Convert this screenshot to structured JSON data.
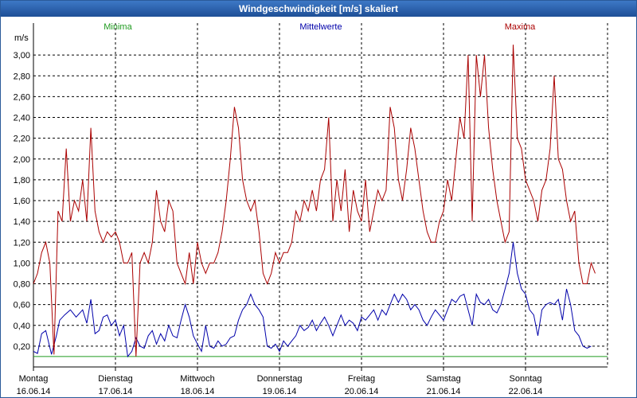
{
  "window": {
    "title": "Windgeschwindigkeit [m/s] skaliert"
  },
  "legend": {
    "min_label": "Minima",
    "mean_label": "Mittelwerte",
    "max_label": "Maxima"
  },
  "colors": {
    "min": "#1f9a1f",
    "mean": "#0000aa",
    "max": "#aa0000",
    "grid": "#000000",
    "plot_bg": "#ffffff"
  },
  "chart_data": {
    "type": "line",
    "title": "Windgeschwindigkeit [m/s] skaliert",
    "ylabel": "m/s",
    "xlabel": "",
    "ylim": [
      0,
      3.2
    ],
    "yticks": [
      0.2,
      0.4,
      0.6,
      0.8,
      1.0,
      1.2,
      1.4,
      1.6,
      1.8,
      2.0,
      2.2,
      2.4,
      2.6,
      2.8,
      3.0
    ],
    "ytick_labels": [
      "0,20",
      "0,40",
      "0,60",
      "0,80",
      "1,00",
      "1,20",
      "1,40",
      "1,60",
      "1,80",
      "2,00",
      "2,20",
      "2,40",
      "2,60",
      "2,80",
      "3,00"
    ],
    "xlim": [
      0,
      7
    ],
    "x_units": "days from 16.06.14 00:00",
    "day_labels": [
      {
        "weekday": "Montag",
        "date": "16.06.14",
        "x": 0
      },
      {
        "weekday": "Dienstag",
        "date": "17.06.14",
        "x": 1
      },
      {
        "weekday": "Mittwoch",
        "date": "18.06.14",
        "x": 2
      },
      {
        "weekday": "Donnerstag",
        "date": "19.06.14",
        "x": 3
      },
      {
        "weekday": "Freitag",
        "date": "20.06.14",
        "x": 4
      },
      {
        "weekday": "Samstag",
        "date": "21.06.14",
        "x": 5
      },
      {
        "weekday": "Sonntag",
        "date": "22.06.14",
        "x": 6
      }
    ],
    "grid": true,
    "series": [
      {
        "name": "Minima",
        "color": "#1f9a1f",
        "points": [
          [
            0,
            0.1
          ],
          [
            7,
            0.1
          ]
        ]
      },
      {
        "name": "Mittelwerte",
        "color": "#0000aa",
        "points": [
          [
            0.0,
            0.15
          ],
          [
            0.05,
            0.13
          ],
          [
            0.1,
            0.32
          ],
          [
            0.15,
            0.35
          ],
          [
            0.22,
            0.12
          ],
          [
            0.28,
            0.3
          ],
          [
            0.32,
            0.45
          ],
          [
            0.38,
            0.5
          ],
          [
            0.45,
            0.55
          ],
          [
            0.52,
            0.48
          ],
          [
            0.6,
            0.55
          ],
          [
            0.65,
            0.42
          ],
          [
            0.7,
            0.65
          ],
          [
            0.75,
            0.32
          ],
          [
            0.8,
            0.35
          ],
          [
            0.85,
            0.48
          ],
          [
            0.9,
            0.5
          ],
          [
            0.95,
            0.4
          ],
          [
            1.0,
            0.45
          ],
          [
            1.05,
            0.3
          ],
          [
            1.1,
            0.4
          ],
          [
            1.15,
            0.1
          ],
          [
            1.2,
            0.15
          ],
          [
            1.25,
            0.28
          ],
          [
            1.3,
            0.2
          ],
          [
            1.35,
            0.18
          ],
          [
            1.4,
            0.3
          ],
          [
            1.45,
            0.35
          ],
          [
            1.5,
            0.22
          ],
          [
            1.55,
            0.32
          ],
          [
            1.6,
            0.25
          ],
          [
            1.65,
            0.4
          ],
          [
            1.7,
            0.3
          ],
          [
            1.75,
            0.28
          ],
          [
            1.8,
            0.45
          ],
          [
            1.85,
            0.6
          ],
          [
            1.9,
            0.48
          ],
          [
            1.95,
            0.3
          ],
          [
            2.0,
            0.22
          ],
          [
            2.05,
            0.15
          ],
          [
            2.1,
            0.4
          ],
          [
            2.15,
            0.2
          ],
          [
            2.2,
            0.18
          ],
          [
            2.25,
            0.25
          ],
          [
            2.3,
            0.2
          ],
          [
            2.35,
            0.22
          ],
          [
            2.4,
            0.28
          ],
          [
            2.45,
            0.3
          ],
          [
            2.5,
            0.45
          ],
          [
            2.55,
            0.55
          ],
          [
            2.6,
            0.6
          ],
          [
            2.65,
            0.7
          ],
          [
            2.7,
            0.6
          ],
          [
            2.75,
            0.55
          ],
          [
            2.8,
            0.48
          ],
          [
            2.85,
            0.2
          ],
          [
            2.9,
            0.18
          ],
          [
            2.95,
            0.22
          ],
          [
            3.0,
            0.15
          ],
          [
            3.05,
            0.25
          ],
          [
            3.1,
            0.2
          ],
          [
            3.15,
            0.25
          ],
          [
            3.2,
            0.3
          ],
          [
            3.25,
            0.4
          ],
          [
            3.3,
            0.35
          ],
          [
            3.35,
            0.38
          ],
          [
            3.4,
            0.45
          ],
          [
            3.45,
            0.35
          ],
          [
            3.5,
            0.42
          ],
          [
            3.55,
            0.48
          ],
          [
            3.6,
            0.4
          ],
          [
            3.65,
            0.3
          ],
          [
            3.7,
            0.4
          ],
          [
            3.75,
            0.5
          ],
          [
            3.8,
            0.4
          ],
          [
            3.85,
            0.45
          ],
          [
            3.9,
            0.42
          ],
          [
            3.95,
            0.35
          ],
          [
            4.0,
            0.48
          ],
          [
            4.05,
            0.45
          ],
          [
            4.1,
            0.5
          ],
          [
            4.15,
            0.55
          ],
          [
            4.2,
            0.45
          ],
          [
            4.25,
            0.55
          ],
          [
            4.3,
            0.5
          ],
          [
            4.35,
            0.6
          ],
          [
            4.4,
            0.7
          ],
          [
            4.45,
            0.62
          ],
          [
            4.5,
            0.7
          ],
          [
            4.55,
            0.65
          ],
          [
            4.6,
            0.55
          ],
          [
            4.65,
            0.6
          ],
          [
            4.7,
            0.55
          ],
          [
            4.75,
            0.45
          ],
          [
            4.8,
            0.4
          ],
          [
            4.85,
            0.48
          ],
          [
            4.9,
            0.55
          ],
          [
            4.95,
            0.5
          ],
          [
            5.0,
            0.45
          ],
          [
            5.05,
            0.55
          ],
          [
            5.1,
            0.65
          ],
          [
            5.15,
            0.62
          ],
          [
            5.2,
            0.68
          ],
          [
            5.25,
            0.7
          ],
          [
            5.3,
            0.55
          ],
          [
            5.35,
            0.4
          ],
          [
            5.4,
            0.7
          ],
          [
            5.45,
            0.62
          ],
          [
            5.5,
            0.6
          ],
          [
            5.55,
            0.65
          ],
          [
            5.6,
            0.55
          ],
          [
            5.65,
            0.52
          ],
          [
            5.7,
            0.6
          ],
          [
            5.75,
            0.75
          ],
          [
            5.8,
            0.9
          ],
          [
            5.85,
            1.2
          ],
          [
            5.9,
            0.9
          ],
          [
            5.95,
            0.75
          ],
          [
            6.0,
            0.7
          ],
          [
            6.05,
            0.55
          ],
          [
            6.1,
            0.5
          ],
          [
            6.15,
            0.3
          ],
          [
            6.2,
            0.55
          ],
          [
            6.25,
            0.6
          ],
          [
            6.3,
            0.62
          ],
          [
            6.35,
            0.6
          ],
          [
            6.4,
            0.65
          ],
          [
            6.45,
            0.45
          ],
          [
            6.5,
            0.75
          ],
          [
            6.55,
            0.6
          ],
          [
            6.6,
            0.35
          ],
          [
            6.65,
            0.3
          ],
          [
            6.7,
            0.2
          ],
          [
            6.75,
            0.18
          ],
          [
            6.8,
            0.2
          ]
        ]
      },
      {
        "name": "Maxima",
        "color": "#aa0000",
        "points": [
          [
            0.0,
            0.8
          ],
          [
            0.05,
            0.9
          ],
          [
            0.1,
            1.1
          ],
          [
            0.15,
            1.2
          ],
          [
            0.2,
            1.0
          ],
          [
            0.25,
            0.12
          ],
          [
            0.3,
            1.5
          ],
          [
            0.35,
            1.4
          ],
          [
            0.4,
            2.1
          ],
          [
            0.45,
            1.4
          ],
          [
            0.5,
            1.6
          ],
          [
            0.55,
            1.5
          ],
          [
            0.6,
            1.8
          ],
          [
            0.65,
            1.4
          ],
          [
            0.7,
            2.3
          ],
          [
            0.75,
            1.5
          ],
          [
            0.8,
            1.3
          ],
          [
            0.85,
            1.2
          ],
          [
            0.9,
            1.3
          ],
          [
            0.95,
            1.25
          ],
          [
            1.0,
            1.3
          ],
          [
            1.05,
            1.2
          ],
          [
            1.1,
            1.0
          ],
          [
            1.15,
            1.0
          ],
          [
            1.2,
            1.1
          ],
          [
            1.25,
            0.1
          ],
          [
            1.3,
            1.0
          ],
          [
            1.35,
            1.1
          ],
          [
            1.4,
            1.0
          ],
          [
            1.45,
            1.2
          ],
          [
            1.5,
            1.7
          ],
          [
            1.55,
            1.4
          ],
          [
            1.6,
            1.3
          ],
          [
            1.65,
            1.6
          ],
          [
            1.7,
            1.5
          ],
          [
            1.75,
            1.0
          ],
          [
            1.8,
            0.9
          ],
          [
            1.85,
            0.8
          ],
          [
            1.9,
            1.1
          ],
          [
            1.95,
            0.8
          ],
          [
            2.0,
            1.2
          ],
          [
            2.05,
            1.0
          ],
          [
            2.1,
            0.9
          ],
          [
            2.15,
            1.0
          ],
          [
            2.2,
            1.0
          ],
          [
            2.25,
            1.1
          ],
          [
            2.3,
            1.3
          ],
          [
            2.35,
            1.6
          ],
          [
            2.4,
            2.0
          ],
          [
            2.45,
            2.5
          ],
          [
            2.5,
            2.3
          ],
          [
            2.55,
            1.8
          ],
          [
            2.6,
            1.6
          ],
          [
            2.65,
            1.5
          ],
          [
            2.7,
            1.6
          ],
          [
            2.75,
            1.3
          ],
          [
            2.8,
            0.9
          ],
          [
            2.85,
            0.8
          ],
          [
            2.9,
            0.9
          ],
          [
            2.95,
            1.1
          ],
          [
            3.0,
            1.0
          ],
          [
            3.05,
            1.1
          ],
          [
            3.1,
            1.1
          ],
          [
            3.15,
            1.2
          ],
          [
            3.2,
            1.5
          ],
          [
            3.25,
            1.4
          ],
          [
            3.3,
            1.6
          ],
          [
            3.35,
            1.5
          ],
          [
            3.4,
            1.7
          ],
          [
            3.45,
            1.5
          ],
          [
            3.5,
            1.8
          ],
          [
            3.55,
            1.9
          ],
          [
            3.6,
            2.4
          ],
          [
            3.65,
            1.4
          ],
          [
            3.7,
            1.8
          ],
          [
            3.75,
            1.5
          ],
          [
            3.8,
            1.9
          ],
          [
            3.85,
            1.3
          ],
          [
            3.9,
            1.7
          ],
          [
            3.95,
            1.5
          ],
          [
            4.0,
            1.4
          ],
          [
            4.05,
            1.8
          ],
          [
            4.1,
            1.3
          ],
          [
            4.15,
            1.5
          ],
          [
            4.2,
            1.7
          ],
          [
            4.25,
            1.6
          ],
          [
            4.3,
            1.7
          ],
          [
            4.35,
            2.5
          ],
          [
            4.4,
            2.3
          ],
          [
            4.45,
            1.8
          ],
          [
            4.5,
            1.6
          ],
          [
            4.55,
            1.9
          ],
          [
            4.6,
            2.3
          ],
          [
            4.65,
            2.1
          ],
          [
            4.7,
            1.8
          ],
          [
            4.75,
            1.5
          ],
          [
            4.8,
            1.3
          ],
          [
            4.85,
            1.2
          ],
          [
            4.9,
            1.2
          ],
          [
            4.95,
            1.4
          ],
          [
            5.0,
            1.5
          ],
          [
            5.05,
            1.8
          ],
          [
            5.1,
            1.6
          ],
          [
            5.15,
            2.0
          ],
          [
            5.2,
            2.4
          ],
          [
            5.25,
            2.2
          ],
          [
            5.3,
            3.0
          ],
          [
            5.35,
            1.4
          ],
          [
            5.4,
            3.0
          ],
          [
            5.45,
            2.6
          ],
          [
            5.5,
            3.0
          ],
          [
            5.55,
            2.3
          ],
          [
            5.6,
            1.9
          ],
          [
            5.65,
            1.6
          ],
          [
            5.7,
            1.4
          ],
          [
            5.75,
            1.2
          ],
          [
            5.8,
            1.3
          ],
          [
            5.85,
            3.1
          ],
          [
            5.9,
            2.2
          ],
          [
            5.95,
            2.1
          ],
          [
            6.0,
            1.8
          ],
          [
            6.05,
            1.7
          ],
          [
            6.1,
            1.6
          ],
          [
            6.15,
            1.4
          ],
          [
            6.2,
            1.7
          ],
          [
            6.25,
            1.8
          ],
          [
            6.3,
            2.1
          ],
          [
            6.35,
            2.8
          ],
          [
            6.4,
            2.0
          ],
          [
            6.45,
            1.9
          ],
          [
            6.5,
            1.6
          ],
          [
            6.55,
            1.4
          ],
          [
            6.6,
            1.5
          ],
          [
            6.65,
            1.0
          ],
          [
            6.7,
            0.8
          ],
          [
            6.75,
            0.8
          ],
          [
            6.8,
            1.0
          ],
          [
            6.85,
            0.9
          ]
        ]
      }
    ]
  }
}
